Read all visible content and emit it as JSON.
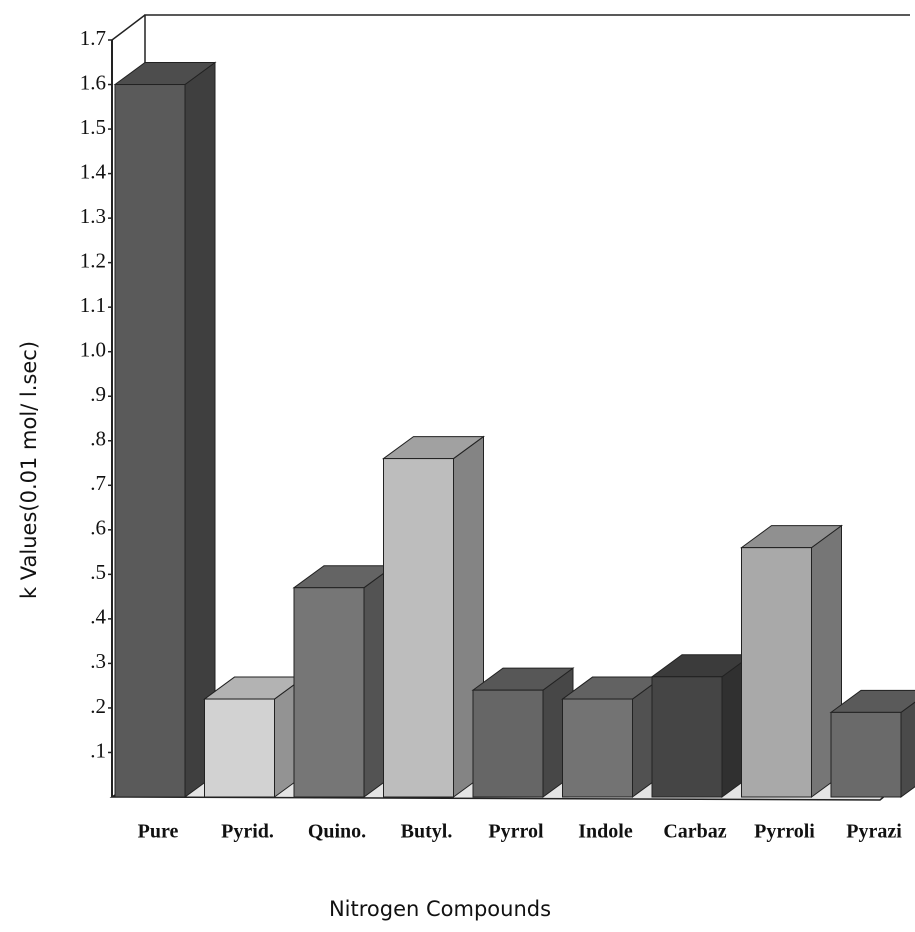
{
  "chart_data": {
    "type": "bar3d",
    "x_label": "Nitrogen Compounds",
    "y_label": "k Values(0.01 mol/ l.sec)",
    "categories": [
      "Pure",
      "Pyrid.",
      "Quino.",
      "Butyl.",
      "Pyrrol",
      "Indole",
      "Carbaz",
      "Pyrroli",
      "Pyrazi"
    ],
    "values": [
      1.6,
      0.22,
      0.47,
      0.76,
      0.24,
      0.22,
      0.27,
      0.56,
      0.19
    ],
    "colors": [
      "#5a5a5a",
      "#d2d2d2",
      "#767676",
      "#bdbdbd",
      "#666666",
      "#737373",
      "#454545",
      "#a9a9a9",
      "#6a6a6a"
    ],
    "ylim": [
      0,
      1.7
    ],
    "yticks": [
      {
        "value": 0.1,
        "label": ".1"
      },
      {
        "value": 0.2,
        "label": ".2"
      },
      {
        "value": 0.3,
        "label": ".3"
      },
      {
        "value": 0.4,
        "label": ".4"
      },
      {
        "value": 0.5,
        "label": ".5"
      },
      {
        "value": 0.6,
        "label": ".6"
      },
      {
        "value": 0.7,
        "label": ".7"
      },
      {
        "value": 0.8,
        "label": ".8"
      },
      {
        "value": 0.9,
        "label": ".9"
      },
      {
        "value": 1.0,
        "label": "1.0"
      },
      1.1,
      1.2,
      1.3,
      1.4,
      1.5,
      1.6,
      1.7
    ]
  }
}
